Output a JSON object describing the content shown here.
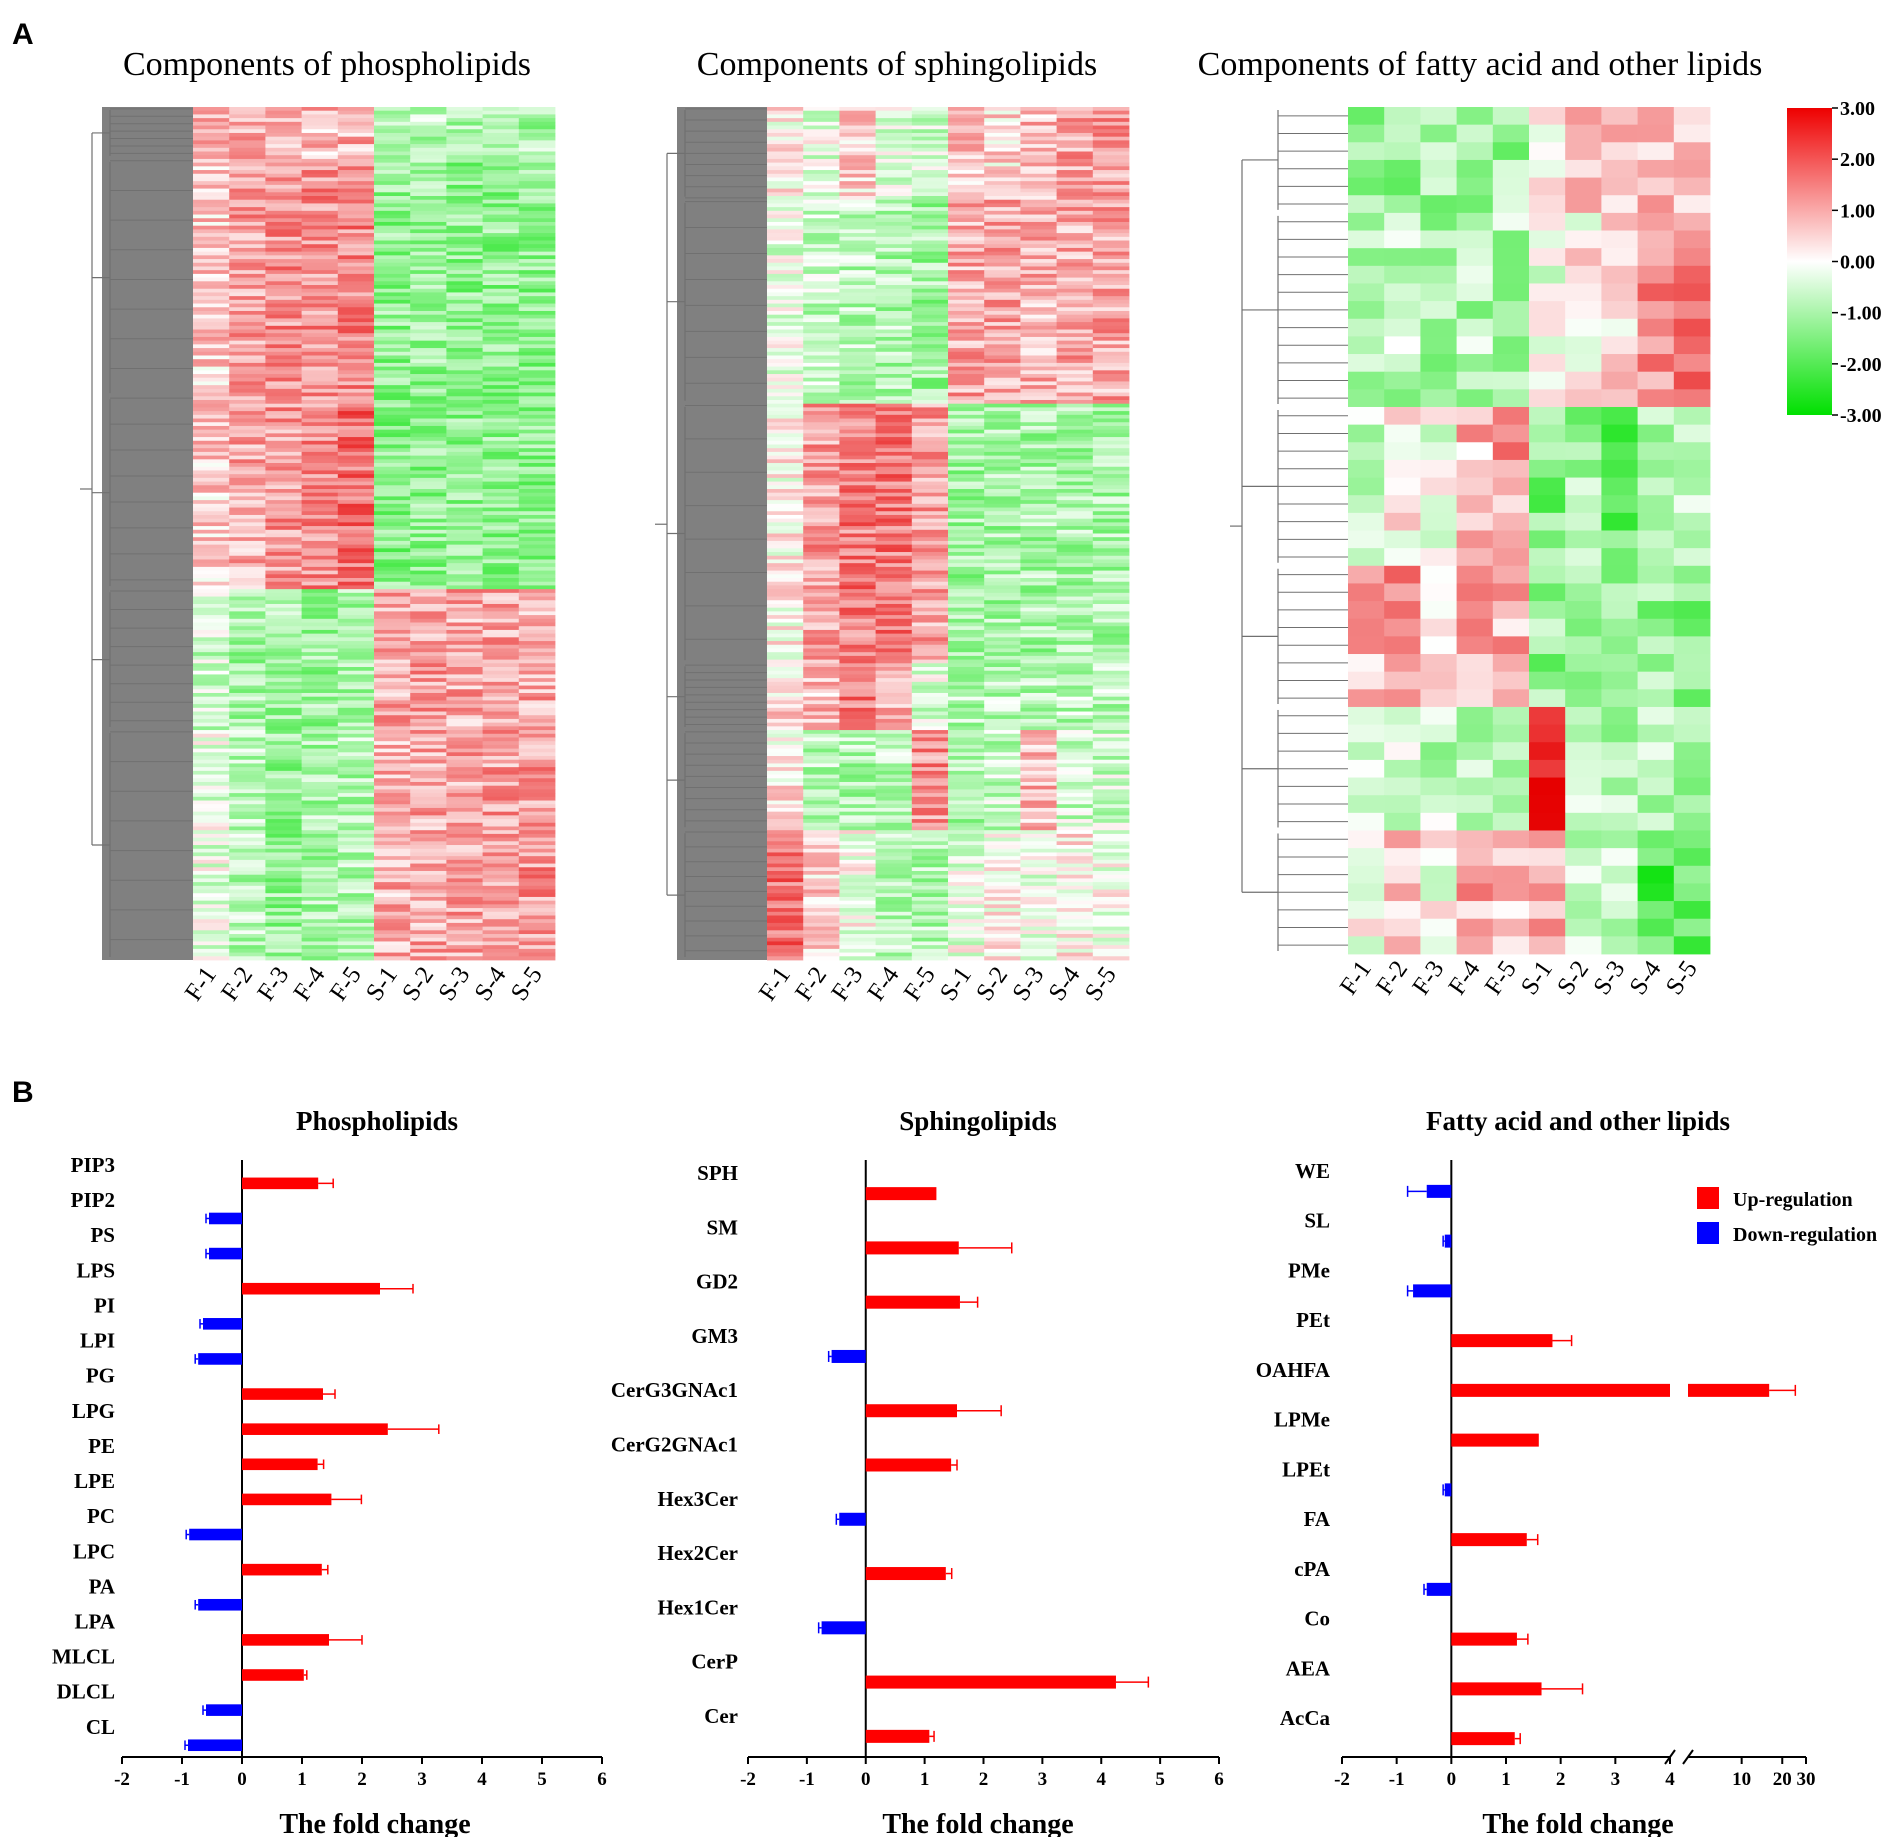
{
  "figure": {
    "panel_a": "A",
    "panel_b": "B"
  },
  "colors": {
    "up": "#ff0000",
    "down": "#0000ff",
    "heat_high": "#ff0000",
    "heat_mid": "#ffffff",
    "heat_low": "#00e000",
    "dendrogram_fill": "#808080"
  },
  "colorbar": {
    "ticks": [
      "3.00",
      "2.00",
      "1.00",
      "0.00",
      "-1.00",
      "-2.00",
      "-3.00"
    ],
    "min": -3,
    "max": 3
  },
  "legend": {
    "up": "Up-regulation",
    "down": "Down-regulation"
  },
  "chart_data": [
    {
      "type": "heatmap",
      "title": "Components of phospholipids",
      "samples": [
        "F-1",
        "F-2",
        "F-3",
        "F-4",
        "F-5",
        "S-1",
        "S-2",
        "S-3",
        "S-4",
        "S-5"
      ],
      "row_count": 230,
      "value_range": [
        -3,
        3
      ],
      "blocks": [
        {
          "rows": [
            0,
            14
          ],
          "means": [
            1.0,
            0.9,
            0.9,
            0.8,
            0.9,
            -0.9,
            -0.8,
            -1.0,
            -1.0,
            -1.0
          ]
        },
        {
          "rows": [
            14,
            78
          ],
          "means": [
            0.6,
            1.1,
            1.3,
            1.3,
            1.4,
            -1.3,
            -1.2,
            -1.3,
            -1.3,
            -1.3
          ]
        },
        {
          "rows": [
            78,
            130
          ],
          "means": [
            0.6,
            1.0,
            1.2,
            1.4,
            1.7,
            -1.4,
            -1.3,
            -1.3,
            -1.3,
            -1.3
          ]
        },
        {
          "rows": [
            130,
            168
          ],
          "means": [
            -0.6,
            -1.0,
            -1.1,
            -1.1,
            -1.1,
            1.0,
            1.1,
            1.0,
            1.0,
            1.0
          ]
        },
        {
          "rows": [
            168,
            230
          ],
          "means": [
            -0.3,
            -0.8,
            -1.2,
            -1.0,
            -0.9,
            0.9,
            1.0,
            1.0,
            1.1,
            1.2
          ]
        }
      ]
    },
    {
      "type": "heatmap",
      "title": "Components of sphingolipids",
      "samples": [
        "F-1",
        "F-2",
        "F-3",
        "F-4",
        "F-5",
        "S-1",
        "S-2",
        "S-3",
        "S-4",
        "S-5"
      ],
      "row_count": 230,
      "value_range": [
        -3,
        3
      ],
      "blocks": [
        {
          "rows": [
            0,
            25
          ],
          "means": [
            0.2,
            -0.3,
            0.5,
            -0.4,
            -0.6,
            0.6,
            0.4,
            0.8,
            1.0,
            1.1
          ]
        },
        {
          "rows": [
            25,
            80
          ],
          "means": [
            -0.3,
            -0.7,
            -0.8,
            -0.9,
            -1.1,
            1.0,
            1.0,
            0.9,
            1.0,
            1.0
          ]
        },
        {
          "rows": [
            80,
            150
          ],
          "means": [
            0.1,
            1.1,
            1.5,
            1.5,
            1.1,
            -1.1,
            -1.0,
            -1.0,
            -1.0,
            -1.0
          ]
        },
        {
          "rows": [
            150,
            168
          ],
          "means": [
            0.4,
            0.8,
            1.6,
            1.0,
            -0.4,
            -0.9,
            -0.8,
            -0.8,
            -0.8,
            -0.8
          ]
        },
        {
          "rows": [
            168,
            195
          ],
          "means": [
            0.3,
            -0.8,
            -0.9,
            -0.8,
            1.3,
            -1.0,
            -0.7,
            0.8,
            -0.6,
            -0.6
          ]
        },
        {
          "rows": [
            195,
            230
          ],
          "means": [
            1.6,
            0.6,
            -0.1,
            -0.8,
            -0.9,
            -0.2,
            0.1,
            -0.3,
            0.2,
            -0.1
          ]
        }
      ]
    },
    {
      "type": "heatmap",
      "title": "Components of fatty acid and other lipids",
      "samples": [
        "F-1",
        "F-2",
        "F-3",
        "F-4",
        "F-5",
        "S-1",
        "S-2",
        "S-3",
        "S-4",
        "S-5"
      ],
      "row_count": 48,
      "value_range": [
        -3,
        3
      ],
      "blocks": [
        {
          "rows": [
            0,
            6
          ],
          "means": [
            -1.2,
            -1.1,
            -1.0,
            -0.9,
            -1.1,
            0.4,
            0.6,
            0.9,
            0.9,
            0.5
          ]
        },
        {
          "rows": [
            6,
            17
          ],
          "means": [
            -1.0,
            -0.8,
            -0.9,
            -0.9,
            -0.9,
            -0.3,
            0.2,
            0.4,
            1.3,
            1.6
          ]
        },
        {
          "rows": [
            17,
            26
          ],
          "means": [
            -0.8,
            0.1,
            -0.2,
            0.8,
            1.1,
            -1.5,
            -1.1,
            -1.8,
            -1.0,
            -0.4
          ]
        },
        {
          "rows": [
            26,
            34
          ],
          "means": [
            0.8,
            1.2,
            0.7,
            1.0,
            0.9,
            -1.3,
            -1.2,
            -1.4,
            -1.2,
            -1.3
          ]
        },
        {
          "rows": [
            34,
            41
          ],
          "means": [
            -0.8,
            -0.6,
            -0.7,
            -0.6,
            -0.7,
            2.6,
            -0.6,
            -0.8,
            -0.7,
            -1.0
          ]
        },
        {
          "rows": [
            41,
            48
          ],
          "means": [
            0.1,
            0.9,
            0.0,
            0.9,
            0.6,
            1.1,
            -0.7,
            -0.9,
            -2.0,
            -2.0
          ]
        }
      ]
    },
    {
      "type": "bar",
      "orientation": "horizontal",
      "title": "Phospholipids",
      "xlabel": "The fold change",
      "xlim": [
        -2,
        6
      ],
      "xticks": [
        "-2",
        "-1",
        "0",
        "1",
        "2",
        "3",
        "4",
        "5",
        "6"
      ],
      "categories": [
        "PIP3",
        "PIP2",
        "PS",
        "LPS",
        "PI",
        "LPI",
        "PG",
        "LPG",
        "PE",
        "LPE",
        "PC",
        "LPC",
        "PA",
        "LPA",
        "MLCL",
        "DLCL",
        "CL"
      ],
      "values": [
        1.27,
        -0.55,
        -0.55,
        2.3,
        -0.65,
        -0.73,
        1.35,
        2.43,
        1.26,
        1.49,
        -0.88,
        1.33,
        -0.73,
        1.45,
        1.03,
        -0.6,
        -0.9
      ],
      "errors": [
        0.25,
        0.05,
        0.05,
        0.55,
        0.05,
        0.05,
        0.2,
        0.85,
        0.1,
        0.5,
        0.05,
        0.1,
        0.05,
        0.55,
        0.05,
        0.05,
        0.05
      ]
    },
    {
      "type": "bar",
      "orientation": "horizontal",
      "title": "Sphingolipids",
      "xlabel": "The fold change",
      "xlim": [
        -2,
        6
      ],
      "xticks": [
        "-2",
        "-1",
        "0",
        "1",
        "2",
        "3",
        "4",
        "5",
        "6"
      ],
      "categories": [
        "SPH",
        "SM",
        "GD2",
        "GM3",
        "CerG3GNAc1",
        "CerG2GNAc1",
        "Hex3Cer",
        "Hex2Cer",
        "Hex1Cer",
        "CerP",
        "Cer"
      ],
      "values": [
        1.2,
        1.58,
        1.6,
        -0.58,
        1.55,
        1.45,
        -0.45,
        1.36,
        -0.75,
        4.25,
        1.08
      ],
      "errors": [
        0.0,
        0.9,
        0.3,
        0.05,
        0.75,
        0.1,
        0.05,
        0.1,
        0.05,
        0.55,
        0.08
      ]
    },
    {
      "type": "bar",
      "orientation": "horizontal",
      "title": "Fatty acid and other lipids",
      "xlabel": "The fold change",
      "axis_break": [
        4,
        5
      ],
      "xticks": [
        "-2",
        "-1",
        "0",
        "1",
        "2",
        "3",
        "4",
        "10",
        "20",
        "30"
      ],
      "categories": [
        "WE",
        "SL",
        "PMe",
        "PEt",
        "OAHFA",
        "LPMe",
        "LPEt",
        "FA",
        "cPA",
        "Co",
        "AEA",
        "AcCa"
      ],
      "values": [
        -0.45,
        -0.12,
        -0.7,
        1.85,
        16.0,
        1.6,
        -0.12,
        1.38,
        -0.45,
        1.2,
        1.65,
        1.16
      ],
      "errors": [
        0.35,
        0.03,
        0.1,
        0.35,
        9.0,
        0.0,
        0.03,
        0.2,
        0.05,
        0.2,
        0.75,
        0.1
      ],
      "legend": [
        "Up-regulation",
        "Down-regulation"
      ]
    }
  ]
}
